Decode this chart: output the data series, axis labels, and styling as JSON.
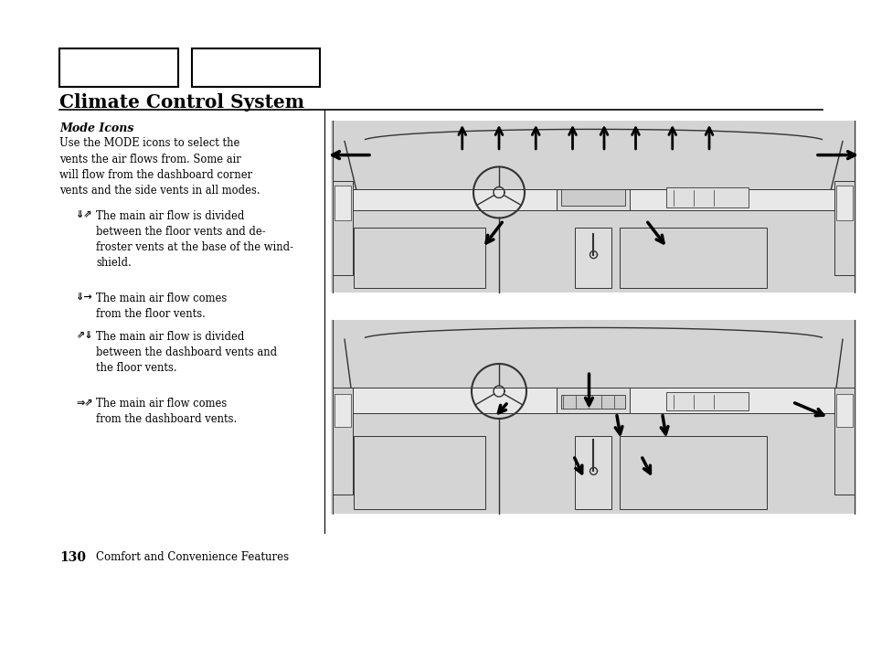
{
  "bg_color": "#ffffff",
  "title": "Climate Control System",
  "section_header": "Mode Icons",
  "intro_text": "Use the MODE icons to select the\nvents the air flows from. Some air\nwill flow from the dashboard corner\nvents and the side vents in all modes.",
  "bullet1_text": "The main air flow is divided\nbetween the floor vents and de-\nfroster vents at the base of the wind-\nshield.",
  "bullet2_text": "The main air flow comes\nfrom the floor vents.",
  "bullet3_text": "The main air flow is divided\nbetween the dashboard vents and\nthe floor vents.",
  "bullet4_text": "The main air flow comes\nfrom the dashboard vents.",
  "footer_page": "130",
  "footer_text": "Comfort and Convenience Features",
  "text_color": "#000000",
  "box_color": "#000000",
  "diagram_bg": "#d4d4d4"
}
